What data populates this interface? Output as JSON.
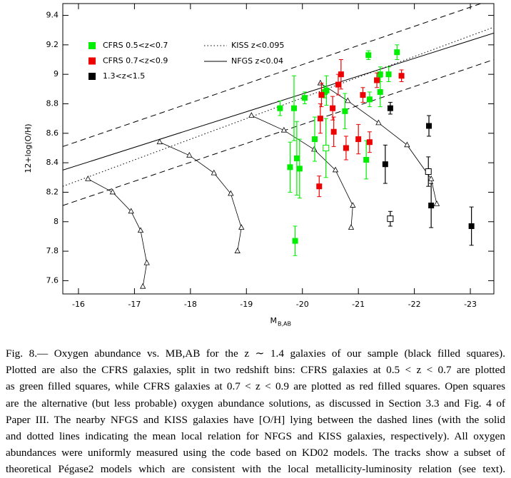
{
  "chart_data": {
    "type": "scatter",
    "x_label": "M",
    "x_label_sub": "B,AB",
    "y_label": "12+log(O/H)",
    "xlim": [
      -15.72,
      -23.42
    ],
    "ylim": [
      7.51,
      9.48
    ],
    "xticks": [
      -16,
      -17,
      -18,
      -19,
      -20,
      -21,
      -22,
      -23
    ],
    "yticks": [
      7.6,
      7.8,
      8,
      8.2,
      8.4,
      8.6,
      8.8,
      9,
      9.2,
      9.4
    ],
    "series": [
      {
        "name": "CFRS  0.5<z<0.7",
        "color": "#00ee00",
        "marker": "filled",
        "x": [
          -19.6,
          -19.85,
          -20.04,
          -19.87,
          -19.9,
          -19.78,
          -19.95,
          -20.22,
          -20.4,
          -20.43,
          -20.76,
          -21.14,
          -21.2,
          -21.18,
          -21.39,
          -21.39,
          -21.54,
          -21.69
        ],
        "values": [
          8.77,
          8.77,
          8.84,
          7.87,
          8.43,
          8.37,
          8.36,
          8.56,
          8.88,
          8.89,
          8.75,
          8.42,
          8.83,
          9.13,
          8.88,
          9.0,
          9.0,
          9.15
        ],
        "errors": [
          0.05,
          0.22,
          0.04,
          0.1,
          0.25,
          0.17,
          0.2,
          0.15,
          0.04,
          0.1,
          0.12,
          0.13,
          0.05,
          0.03,
          0.1,
          0.05,
          0.05,
          0.05
        ]
      },
      {
        "name": "CFRS  0.7<z<0.9",
        "color": "#ee0000",
        "marker": "filled",
        "x": [
          -20.3,
          -20.32,
          -20.34,
          -20.54,
          -20.56,
          -20.64,
          -20.69,
          -20.78,
          -21.0,
          -21.08,
          -21.2,
          -21.33,
          -21.77
        ],
        "values": [
          8.24,
          8.7,
          8.86,
          8.77,
          8.61,
          8.93,
          9.0,
          8.5,
          8.56,
          8.86,
          8.54,
          8.96,
          8.99
        ],
        "errors": [
          0.07,
          0.1,
          0.08,
          0.08,
          0.1,
          0.07,
          0.1,
          0.08,
          0.1,
          0.05,
          0.07,
          0.05,
          0.04
        ]
      },
      {
        "name": "1.3<z<1.5",
        "color": "#000000",
        "marker": "filled",
        "x": [
          -21.57,
          -21.48,
          -22.26,
          -22.3,
          -23.02
        ],
        "values": [
          8.77,
          8.39,
          8.65,
          8.11,
          7.97
        ],
        "errors": [
          0.04,
          0.13,
          0.07,
          0.15,
          0.13
        ]
      },
      {
        "color": "#00ee00",
        "marker": "open",
        "x": [
          -20.42
        ],
        "values": [
          8.5
        ],
        "errors": [
          0.2
        ]
      },
      {
        "color": "#000000",
        "marker": "open",
        "x": [
          -21.57,
          -22.25
        ],
        "values": [
          8.02,
          8.34
        ],
        "errors": [
          0.05,
          0.1
        ]
      }
    ],
    "lines": [
      {
        "style": "dashed",
        "x": [
          -15.72,
          -23.42
        ],
        "values": [
          8.51,
          9.51
        ]
      },
      {
        "name": "KISS  z<0.095",
        "style": "dotted",
        "x": [
          -15.72,
          -23.42
        ],
        "values": [
          8.24,
          9.32
        ]
      },
      {
        "name": "NFGS  z<0.04",
        "style": "solid",
        "x": [
          -15.72,
          -23.42
        ],
        "values": [
          8.35,
          9.28
        ]
      },
      {
        "style": "dashed",
        "x": [
          -15.72,
          -23.42
        ],
        "values": [
          8.11,
          9.1
        ]
      }
    ],
    "tracks": [
      {
        "x": [
          -16.17,
          -16.61,
          -16.94,
          -17.11,
          -17.22,
          -17.15
        ],
        "values": [
          8.29,
          8.2,
          8.07,
          7.94,
          7.72,
          7.56
        ]
      },
      {
        "x": [
          -17.45,
          -17.98,
          -18.42,
          -18.72,
          -18.91,
          -18.84
        ],
        "values": [
          8.54,
          8.45,
          8.33,
          8.19,
          7.96,
          7.8
        ]
      },
      {
        "x": [
          -19.09,
          -19.67,
          -20.21,
          -20.59,
          -20.9,
          -20.87
        ],
        "values": [
          8.72,
          8.62,
          8.49,
          8.35,
          8.11,
          7.96
        ]
      },
      {
        "x": [
          -20.32,
          -20.81,
          -21.36,
          -21.87,
          -22.3,
          -22.4
        ],
        "values": [
          8.94,
          8.82,
          8.67,
          8.52,
          8.29,
          8.12
        ]
      }
    ]
  },
  "caption": [
    "Fig.  8.— Oxygen abundance vs.  MB,AB for the z ∼ 1.4 galaxies of our sample (black filled squares).",
    "Plotted are also the CFRS galaxies, split in two redshift bins: CFRS galaxies at 0.5 < z < 0.7 are plotted",
    "as green filled squares, while CFRS galaxies at 0.7 < z < 0.9 are plotted as red filled squares. Open squares",
    "are the alternative (but less probable) oxygen abundance solutions, as discussed in Section 3.3 and Fig. 4 of",
    "Paper III. The nearby NFGS and KISS galaxies have [O/H] lying between the dashed lines (with the solid",
    "and dotted lines indicating the mean local relation for NFGS and KISS galaxies, respectively). All oxygen",
    "abundances were uniformly measured using the code based on KD02 models. The tracks show a subset of",
    "theoretical Pégase2 models which are consistent with the local metallicity-luminosity relation (see text)."
  ]
}
